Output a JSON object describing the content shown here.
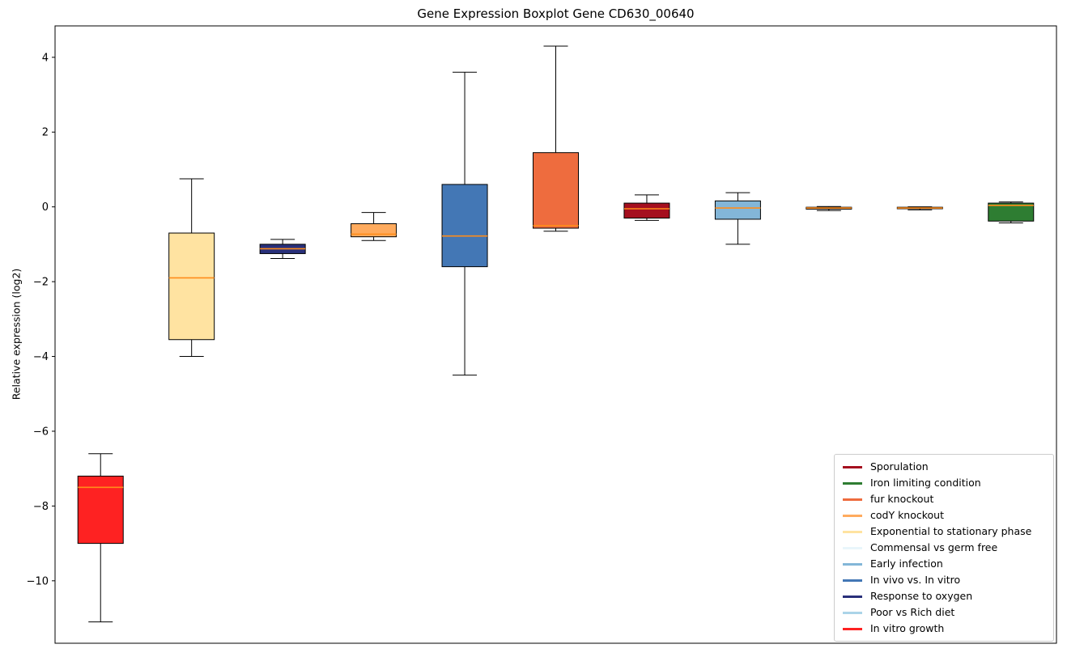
{
  "figure": {
    "title": "Gene Expression Boxplot Gene CD630_00640",
    "ylabel": "Relative expression (log2)",
    "background_color": "#ffffff",
    "axis_color": "#000000"
  },
  "chart_data": {
    "type": "boxplot",
    "title": "Gene Expression Boxplot Gene CD630_00640",
    "xlabel": "",
    "ylabel": "Relative expression (log2)",
    "ylim": [
      -11.67,
      4.84
    ],
    "yticks": [
      4,
      2,
      0,
      -2,
      -4,
      -6,
      -8,
      -10
    ],
    "grid": false,
    "median_color": "#ff8c1a",
    "boxes": [
      {
        "name": "In vitro growth",
        "color": "#fe2222",
        "whisker_low": -11.1,
        "q1": -9.0,
        "median": -7.5,
        "q3": -7.2,
        "whisker_high": -6.6
      },
      {
        "name": "Exponential to stationary phase",
        "color": "#ffe3a1",
        "whisker_low": -4.0,
        "q1": -3.55,
        "median": -1.9,
        "q3": -0.7,
        "whisker_high": 0.75
      },
      {
        "name": "Response to oxygen",
        "color": "#29307a",
        "whisker_low": -1.38,
        "q1": -1.25,
        "median": -1.12,
        "q3": -1.0,
        "whisker_high": -0.87
      },
      {
        "name": "codY knockout",
        "color": "#ffab5e",
        "whisker_low": -0.9,
        "q1": -0.8,
        "median": -0.73,
        "q3": -0.45,
        "whisker_high": -0.15
      },
      {
        "name": "In vivo vs. In vitro",
        "color": "#4377b5",
        "whisker_low": -4.5,
        "q1": -1.6,
        "median": -0.78,
        "q3": 0.6,
        "whisker_high": 3.6
      },
      {
        "name": "fur knockout",
        "color": "#ee6c3e",
        "whisker_low": -0.65,
        "q1": -0.57,
        "median": -0.5,
        "q3": 1.45,
        "whisker_high": 4.3
      },
      {
        "name": "Sporulation",
        "color": "#a50f1f",
        "whisker_low": -0.36,
        "q1": -0.3,
        "median": -0.05,
        "q3": 0.1,
        "whisker_high": 0.32
      },
      {
        "name": "Early infection",
        "color": "#83b6d8",
        "whisker_low": -1.0,
        "q1": -0.33,
        "median": -0.03,
        "q3": 0.16,
        "whisker_high": 0.38
      },
      {
        "name": "Commensal vs germ free",
        "color": "#e9f6fb",
        "whisker_low": -0.1,
        "q1": -0.06,
        "median": -0.03,
        "q3": -0.01,
        "whisker_high": 0.01
      },
      {
        "name": "Poor vs Rich diet",
        "color": "#abd4e8",
        "whisker_low": -0.08,
        "q1": -0.05,
        "median": -0.03,
        "q3": -0.01,
        "whisker_high": 0.0
      },
      {
        "name": "Iron limiting condition",
        "color": "#2e7d32",
        "whisker_low": -0.43,
        "q1": -0.38,
        "median": 0.04,
        "q3": 0.1,
        "whisker_high": 0.13
      }
    ],
    "legend": {
      "position": "lower right",
      "entries": [
        {
          "label": "Sporulation",
          "color": "#a50f1f"
        },
        {
          "label": "Iron limiting condition",
          "color": "#2e7d32"
        },
        {
          "label": "fur knockout",
          "color": "#ee6c3e"
        },
        {
          "label": "codY knockout",
          "color": "#ffab5e"
        },
        {
          "label": "Exponential to stationary phase",
          "color": "#ffe3a1"
        },
        {
          "label": "Commensal vs germ free",
          "color": "#e9f6fb"
        },
        {
          "label": "Early infection",
          "color": "#83b6d8"
        },
        {
          "label": "In vivo vs. In vitro",
          "color": "#4377b5"
        },
        {
          "label": "Response to oxygen",
          "color": "#29307a"
        },
        {
          "label": "Poor vs Rich diet",
          "color": "#abd4e8"
        },
        {
          "label": "In vitro growth",
          "color": "#fe2222"
        }
      ]
    }
  }
}
